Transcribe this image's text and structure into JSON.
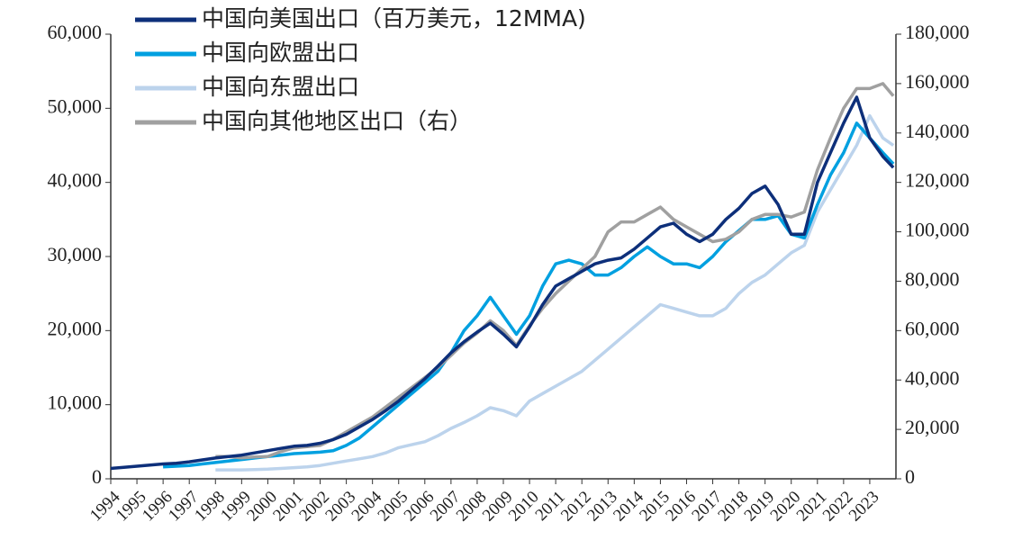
{
  "chart_data": {
    "type": "line",
    "x": [
      1994,
      1994.5,
      1995,
      1995.5,
      1996,
      1996.5,
      1997,
      1997.5,
      1998,
      1998.5,
      1999,
      1999.5,
      2000,
      2000.5,
      2001,
      2001.5,
      2002,
      2002.5,
      2003,
      2003.5,
      2004,
      2004.5,
      2005,
      2005.5,
      2006,
      2006.5,
      2007,
      2007.5,
      2008,
      2008.5,
      2009,
      2009.5,
      2010,
      2010.5,
      2011,
      2011.5,
      2012,
      2012.5,
      2013,
      2013.5,
      2014,
      2014.5,
      2015,
      2015.5,
      2016,
      2016.5,
      2017,
      2017.5,
      2018,
      2018.5,
      2019,
      2019.5,
      2020,
      2020.5,
      2021,
      2021.5,
      2022,
      2022.5,
      2023,
      2023.5,
      2023.9
    ],
    "series": [
      {
        "name": "中国向美国出口（百万美元，12MMA)",
        "color": "#0d2f7a",
        "values": [
          1400,
          1550,
          1700,
          1850,
          2000,
          2100,
          2300,
          2550,
          2800,
          3000,
          3200,
          3500,
          3800,
          4100,
          4400,
          4500,
          4800,
          5300,
          6000,
          7000,
          8000,
          9200,
          10500,
          12000,
          13500,
          15200,
          17000,
          18500,
          19800,
          21000,
          19500,
          17800,
          20500,
          23500,
          26000,
          27000,
          28000,
          29000,
          29500,
          29800,
          31000,
          32500,
          34000,
          34500,
          33000,
          32000,
          33000,
          35000,
          36500,
          38500,
          39500,
          37000,
          33000,
          33000,
          40000,
          44000,
          48000,
          51500,
          46000,
          43500,
          42000
        ]
      },
      {
        "name": "中国向欧盟出口",
        "color": "#00a0e0",
        "values": [
          null,
          null,
          null,
          null,
          1600,
          1700,
          1800,
          2000,
          2200,
          2400,
          2600,
          2800,
          3000,
          3200,
          3400,
          3500,
          3600,
          3800,
          4500,
          5500,
          7000,
          8500,
          10000,
          11500,
          13000,
          14500,
          17000,
          20000,
          22000,
          24500,
          22000,
          19500,
          22000,
          26000,
          29000,
          29500,
          29000,
          27500,
          27500,
          28500,
          30000,
          31300,
          30000,
          29000,
          29000,
          28500,
          30000,
          32000,
          33500,
          35000,
          35000,
          35500,
          33000,
          32500,
          37000,
          41000,
          44000,
          48000,
          46000,
          44000,
          42500
        ]
      },
      {
        "name": "中国向东盟出口",
        "color": "#bcd3ec",
        "values": [
          null,
          null,
          null,
          null,
          null,
          null,
          null,
          null,
          1200,
          1200,
          1200,
          1250,
          1300,
          1400,
          1500,
          1600,
          1800,
          2100,
          2400,
          2700,
          3000,
          3500,
          4200,
          4600,
          5000,
          5800,
          6800,
          7600,
          8500,
          9600,
          9200,
          8500,
          10500,
          11500,
          12500,
          13500,
          14500,
          16000,
          17500,
          19000,
          20500,
          22000,
          23500,
          23000,
          22500,
          22000,
          22000,
          23000,
          25000,
          26500,
          27500,
          29000,
          30500,
          31500,
          36000,
          39000,
          42000,
          45000,
          49000,
          46000,
          45000
        ]
      },
      {
        "name": "中国向其他地区出口（右）",
        "color": "#a0a0a0",
        "axis": "y2",
        "values": [
          null,
          null,
          null,
          null,
          null,
          null,
          null,
          null,
          9000,
          9000,
          8500,
          8800,
          9000,
          11000,
          12500,
          13000,
          13500,
          16000,
          19000,
          22000,
          25000,
          29000,
          33000,
          37000,
          41000,
          45000,
          50000,
          55000,
          59000,
          64000,
          60000,
          54000,
          62000,
          69000,
          75000,
          80000,
          85000,
          90000,
          100000,
          104000,
          104000,
          107000,
          110000,
          105000,
          102000,
          99000,
          96000,
          97000,
          100000,
          105000,
          107000,
          107000,
          106000,
          108000,
          125000,
          138000,
          150000,
          158000,
          158000,
          160000,
          155000
        ]
      }
    ],
    "xlim": [
      1994,
      2024
    ],
    "xticks": [
      1994,
      1995,
      1996,
      1997,
      1998,
      1999,
      2000,
      2001,
      2002,
      2003,
      2004,
      2005,
      2006,
      2007,
      2008,
      2009,
      2010,
      2011,
      2012,
      2013,
      2014,
      2015,
      2016,
      2017,
      2018,
      2019,
      2020,
      2021,
      2022,
      2023
    ],
    "ylim": [
      0,
      60000
    ],
    "yticks": [
      0,
      {
        "value": 10000,
        "label": "10,000"
      },
      {
        "value": 20000,
        "label": "20,000"
      },
      {
        "value": 30000,
        "label": "30,000"
      },
      {
        "value": 40000,
        "label": "40,000"
      },
      {
        "value": 50000,
        "label": "50,000"
      },
      {
        "value": 60000,
        "label": "60,000"
      }
    ],
    "y2lim": [
      0,
      180000
    ],
    "y2ticks": [
      0,
      {
        "value": 20000,
        "label": "20,000"
      },
      {
        "value": 40000,
        "label": "40,000"
      },
      {
        "value": 60000,
        "label": "60,000"
      },
      {
        "value": 80000,
        "label": "80,000"
      },
      {
        "value": 100000,
        "label": "100,000"
      },
      {
        "value": 120000,
        "label": "120,000"
      },
      {
        "value": 140000,
        "label": "140,000"
      },
      {
        "value": 160000,
        "label": "160,000"
      },
      {
        "value": 180000,
        "label": "180,000"
      }
    ],
    "legend": "upper-left"
  }
}
